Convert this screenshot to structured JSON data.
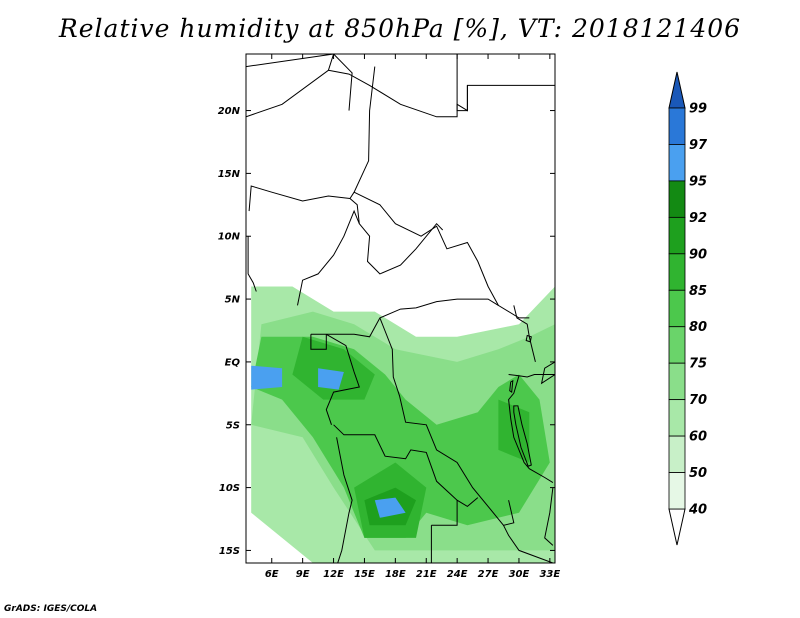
{
  "title": "Relative humidity at 850hPa [%], VT: 2018121406",
  "credit": "GrADS: IGES/COLA",
  "map": {
    "lon_range": [
      3.5,
      33.5
    ],
    "lat_range": [
      -16,
      24.5
    ],
    "lon_ticks": [
      {
        "value": 6,
        "label": "6E"
      },
      {
        "value": 9,
        "label": "9E"
      },
      {
        "value": 12,
        "label": "12E"
      },
      {
        "value": 15,
        "label": "15E"
      },
      {
        "value": 18,
        "label": "18E"
      },
      {
        "value": 21,
        "label": "21E"
      },
      {
        "value": 24,
        "label": "24E"
      },
      {
        "value": 27,
        "label": "27E"
      },
      {
        "value": 30,
        "label": "30E"
      },
      {
        "value": 33,
        "label": "33E"
      }
    ],
    "lat_ticks": [
      {
        "value": 20,
        "label": "20N"
      },
      {
        "value": 15,
        "label": "15N"
      },
      {
        "value": 10,
        "label": "10N"
      },
      {
        "value": 5,
        "label": "5N"
      },
      {
        "value": 0,
        "label": "EQ"
      },
      {
        "value": -5,
        "label": "5S"
      },
      {
        "value": -10,
        "label": "10S"
      },
      {
        "value": -15,
        "label": "15S"
      }
    ]
  },
  "colorbar": {
    "levels": [
      "40",
      "50",
      "60",
      "70",
      "75",
      "80",
      "85",
      "90",
      "92",
      "95",
      "97",
      "99"
    ],
    "colors": [
      "#ffffff",
      "#e6f8e6",
      "#c8f0c8",
      "#a8e8a8",
      "#8ade8a",
      "#6ad46a",
      "#4cc84c",
      "#30b430",
      "#1ea01e",
      "#138a13",
      "#4aa0f0",
      "#2a78d8",
      "#1a58b8"
    ]
  },
  "humidity_regions": [
    {
      "level": 60,
      "pts": [
        [
          4,
          6
        ],
        [
          8,
          6
        ],
        [
          12,
          4
        ],
        [
          16,
          4
        ],
        [
          20,
          2
        ],
        [
          24,
          2
        ],
        [
          30,
          3
        ],
        [
          33.5,
          6
        ],
        [
          33.5,
          -16
        ],
        [
          10,
          -16
        ],
        [
          4,
          -12
        ]
      ]
    },
    {
      "level": 70,
      "pts": [
        [
          5,
          3
        ],
        [
          10,
          4
        ],
        [
          14,
          3
        ],
        [
          18,
          1
        ],
        [
          24,
          0
        ],
        [
          28,
          1
        ],
        [
          31,
          2
        ],
        [
          33.5,
          3
        ],
        [
          33.5,
          -15
        ],
        [
          16,
          -15
        ],
        [
          12,
          -10
        ],
        [
          9,
          -6
        ],
        [
          4,
          -5
        ]
      ]
    },
    {
      "level": 80,
      "pts": [
        [
          5,
          2
        ],
        [
          10,
          2
        ],
        [
          14,
          1
        ],
        [
          17,
          -1
        ],
        [
          19,
          -3
        ],
        [
          22,
          -5
        ],
        [
          26,
          -4
        ],
        [
          28,
          -2
        ],
        [
          30,
          -1
        ],
        [
          32,
          -3
        ],
        [
          33,
          -8
        ],
        [
          30,
          -12
        ],
        [
          25,
          -13
        ],
        [
          21,
          -12
        ],
        [
          19,
          -14
        ],
        [
          15,
          -14
        ],
        [
          13,
          -10
        ],
        [
          10,
          -6
        ],
        [
          7,
          -3
        ],
        [
          4,
          -2
        ]
      ]
    },
    {
      "level": 85,
      "pts": [
        [
          9,
          2
        ],
        [
          13,
          1
        ],
        [
          16,
          -1
        ],
        [
          15,
          -3
        ],
        [
          11,
          -3
        ],
        [
          8,
          -1
        ]
      ]
    },
    {
      "level": 85,
      "pts": [
        [
          14,
          -10
        ],
        [
          18,
          -8
        ],
        [
          21,
          -10
        ],
        [
          20,
          -14
        ],
        [
          15,
          -14
        ]
      ]
    },
    {
      "level": 85,
      "pts": [
        [
          28,
          -3
        ],
        [
          31,
          -4
        ],
        [
          31,
          -8
        ],
        [
          28,
          -7
        ]
      ]
    },
    {
      "level": 90,
      "pts": [
        [
          15,
          -11
        ],
        [
          18,
          -10
        ],
        [
          20,
          -11
        ],
        [
          19,
          -13
        ],
        [
          15.5,
          -13
        ]
      ]
    },
    {
      "level": 95,
      "pts": [
        [
          4,
          -0.3
        ],
        [
          7,
          -0.5
        ],
        [
          7,
          -2
        ],
        [
          4,
          -2.2
        ]
      ]
    },
    {
      "level": 95,
      "pts": [
        [
          10.5,
          -0.5
        ],
        [
          13,
          -0.8
        ],
        [
          12.5,
          -2.2
        ],
        [
          10.5,
          -2
        ]
      ]
    },
    {
      "level": 95,
      "pts": [
        [
          16,
          -11
        ],
        [
          18,
          -10.8
        ],
        [
          19,
          -12
        ],
        [
          16.5,
          -12.4
        ]
      ]
    }
  ],
  "boundaries": [
    [
      [
        3.5,
        23.5
      ],
      [
        12,
        24.5
      ]
    ],
    [
      [
        3.5,
        16
      ],
      [
        3.5,
        19.5
      ],
      [
        7,
        20.5
      ],
      [
        11.5,
        23.2
      ],
      [
        12,
        24.5
      ]
    ],
    [
      [
        11.5,
        23.2
      ],
      [
        13.5,
        22.9
      ],
      [
        15.5,
        22
      ],
      [
        18.5,
        20.5
      ],
      [
        22,
        19.5
      ],
      [
        24,
        19.5
      ],
      [
        24,
        20.5
      ],
      [
        25,
        20
      ],
      [
        25,
        22
      ]
    ],
    [
      [
        24,
        24.5
      ],
      [
        24,
        20
      ],
      [
        25,
        20
      ],
      [
        25,
        22
      ],
      [
        33.5,
        22
      ]
    ],
    [
      [
        12,
        24.5
      ],
      [
        14,
        24.5
      ]
    ],
    [
      [
        16,
        23.5
      ],
      [
        15.5,
        20
      ],
      [
        15.4,
        16
      ],
      [
        14,
        13.5
      ],
      [
        13.6,
        13
      ],
      [
        14.3,
        12.5
      ],
      [
        14.5,
        11
      ]
    ],
    [
      [
        3.8,
        12
      ],
      [
        4,
        14
      ],
      [
        6,
        13.5
      ],
      [
        9,
        12.8
      ],
      [
        11.5,
        13.2
      ],
      [
        13.6,
        13
      ]
    ],
    [
      [
        14,
        13.5
      ],
      [
        16.5,
        12.5
      ],
      [
        18,
        11
      ],
      [
        20.5,
        10
      ],
      [
        22,
        10.8
      ],
      [
        23,
        9
      ],
      [
        25,
        9.5
      ],
      [
        26,
        8
      ],
      [
        27,
        6
      ],
      [
        28,
        4.5
      ],
      [
        30,
        3.5
      ],
      [
        31,
        3.5
      ]
    ],
    [
      [
        14.5,
        11
      ],
      [
        15.5,
        10
      ],
      [
        15.3,
        8
      ],
      [
        16.5,
        7
      ],
      [
        18.5,
        7.7
      ],
      [
        20,
        9
      ],
      [
        22,
        11
      ],
      [
        22.6,
        10.5
      ]
    ],
    [
      [
        12,
        24.5
      ],
      [
        13.8,
        23
      ],
      [
        13.5,
        20
      ]
    ],
    [
      [
        3.7,
        10
      ],
      [
        3.7,
        7
      ],
      [
        4.2,
        6.3
      ],
      [
        4.5,
        5.6
      ]
    ],
    [
      [
        8.5,
        4.5
      ],
      [
        9,
        6.5
      ],
      [
        10.5,
        7
      ],
      [
        12,
        8.5
      ],
      [
        13,
        10
      ],
      [
        14,
        12
      ],
      [
        14.5,
        11
      ]
    ],
    [
      [
        9.8,
        2.2
      ],
      [
        11.3,
        2.2
      ],
      [
        14,
        2.2
      ],
      [
        15.5,
        2
      ],
      [
        16.5,
        3.5
      ],
      [
        18.5,
        4.2
      ],
      [
        20,
        4.3
      ],
      [
        22,
        4.8
      ],
      [
        24,
        5
      ],
      [
        27,
        5
      ],
      [
        28,
        4.5
      ]
    ],
    [
      [
        9.8,
        2.2
      ],
      [
        9.8,
        1
      ],
      [
        11.3,
        1
      ],
      [
        11.3,
        2.2
      ]
    ],
    [
      [
        11.3,
        2.2
      ],
      [
        13.2,
        1.3
      ],
      [
        14,
        -0.8
      ],
      [
        14.5,
        -2
      ],
      [
        12,
        -2.4
      ],
      [
        11.3,
        -3.8
      ],
      [
        11.8,
        -5
      ]
    ],
    [
      [
        16.5,
        3.5
      ],
      [
        17.7,
        1
      ],
      [
        17.8,
        -1.2
      ],
      [
        18.4,
        -2.7
      ],
      [
        19,
        -4.8
      ],
      [
        21,
        -5
      ],
      [
        22,
        -7
      ],
      [
        24,
        -8
      ],
      [
        25.5,
        -10
      ],
      [
        27,
        -11.5
      ],
      [
        28.5,
        -13
      ],
      [
        29.5,
        -12.8
      ],
      [
        29,
        -11
      ]
    ],
    [
      [
        12,
        -5
      ],
      [
        13,
        -5.8
      ],
      [
        16,
        -5.8
      ],
      [
        17,
        -7.5
      ],
      [
        19,
        -7.7
      ],
      [
        19.5,
        -7
      ],
      [
        21,
        -7.2
      ],
      [
        22,
        -9.5
      ],
      [
        24,
        -11
      ],
      [
        25,
        -11.5
      ],
      [
        26,
        -10.8
      ]
    ],
    [
      [
        29,
        -1
      ],
      [
        30,
        -1.1
      ],
      [
        30.8,
        -1.2
      ],
      [
        31.5,
        -1
      ],
      [
        33.5,
        -1
      ]
    ],
    [
      [
        30,
        -1.1
      ],
      [
        29.5,
        -2.5
      ],
      [
        29,
        -3
      ],
      [
        29.2,
        -4.5
      ],
      [
        29.5,
        -6
      ],
      [
        30.5,
        -8
      ],
      [
        31,
        -8.5
      ],
      [
        32.5,
        -9.2
      ],
      [
        33.3,
        -9.6
      ]
    ],
    [
      [
        12,
        -17
      ],
      [
        12.8,
        -15
      ],
      [
        13.5,
        -12
      ],
      [
        13.8,
        -11
      ],
      [
        13,
        -9
      ],
      [
        12.3,
        -6
      ]
    ],
    [
      [
        13,
        -16.3
      ],
      [
        21.5,
        -16.3
      ],
      [
        21.5,
        -13
      ]
    ],
    [
      [
        24,
        -11
      ],
      [
        24,
        -13
      ],
      [
        22,
        -13
      ],
      [
        21.5,
        -13
      ]
    ],
    [
      [
        28.5,
        -13
      ],
      [
        29,
        -13.8
      ],
      [
        30,
        -15
      ],
      [
        33.3,
        -16
      ]
    ],
    [
      [
        33.3,
        -10
      ],
      [
        33,
        -12
      ],
      [
        32.5,
        -14
      ],
      [
        33.3,
        -14.6
      ]
    ],
    [
      [
        29.5,
        4.5
      ],
      [
        29.8,
        3.5
      ],
      [
        30.8,
        3
      ],
      [
        31,
        2
      ],
      [
        31.3,
        1
      ],
      [
        31.6,
        0
      ]
    ]
  ],
  "lakes": [
    [
      [
        29.5,
        -3.5
      ],
      [
        29.9,
        -3.5
      ],
      [
        30.3,
        -5
      ],
      [
        30.8,
        -6.5
      ],
      [
        31.2,
        -8.2
      ],
      [
        30.9,
        -8.3
      ],
      [
        30.2,
        -6.8
      ],
      [
        29.7,
        -5
      ],
      [
        29.5,
        -4
      ]
    ],
    [
      [
        30.8,
        2.1
      ],
      [
        31.2,
        2
      ],
      [
        31.1,
        1.6
      ],
      [
        30.7,
        1.7
      ]
    ],
    [
      [
        29.2,
        -1.6
      ],
      [
        29.4,
        -1.5
      ],
      [
        29.3,
        -2.4
      ],
      [
        29.1,
        -2.3
      ]
    ],
    [
      [
        33.5,
        -1
      ],
      [
        32.2,
        -1.7
      ],
      [
        32.5,
        -0.5
      ],
      [
        33.5,
        0
      ]
    ]
  ]
}
